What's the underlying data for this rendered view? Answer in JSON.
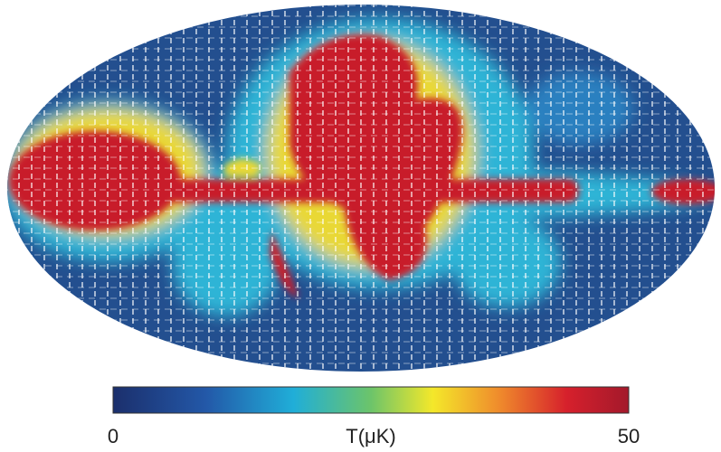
{
  "colorbar": {
    "label": "T(μK)",
    "lim": [
      0,
      50
    ],
    "ticks": [
      0,
      50
    ]
  }
}
